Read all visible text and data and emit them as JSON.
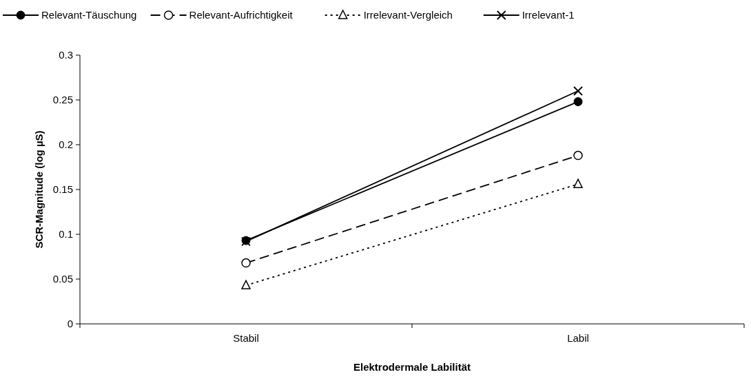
{
  "chart_data": {
    "type": "line",
    "xlabel": "Elektrodermale Labilität",
    "ylabel": "SCR-Magnitude (log µS)",
    "categories": [
      "Stabil",
      "Labil"
    ],
    "ylim": [
      0,
      0.3
    ],
    "yticks": [
      0,
      0.05,
      0.1,
      0.15,
      0.2,
      0.25,
      0.3
    ],
    "grid": false,
    "legend": "top",
    "series": [
      {
        "name": "Relevant-Täuschung",
        "color": "#000000",
        "values": [
          0.093,
          0.248
        ],
        "marker": "circle",
        "line_style": "solid"
      },
      {
        "name": "Relevant-Aufrichtigkeit",
        "color": "#000000",
        "values": [
          0.068,
          0.188
        ],
        "marker": "circle-open",
        "line_style": "dashed"
      },
      {
        "name": "Irrelevant-Vergleich",
        "color": "#000000",
        "values": [
          0.043,
          0.156
        ],
        "marker": "triangle-open",
        "line_style": "dotted"
      },
      {
        "name": "Irrelevant-1",
        "color": "#000000",
        "values": [
          0.092,
          0.26
        ],
        "marker": "cross",
        "line_style": "solid"
      }
    ]
  }
}
